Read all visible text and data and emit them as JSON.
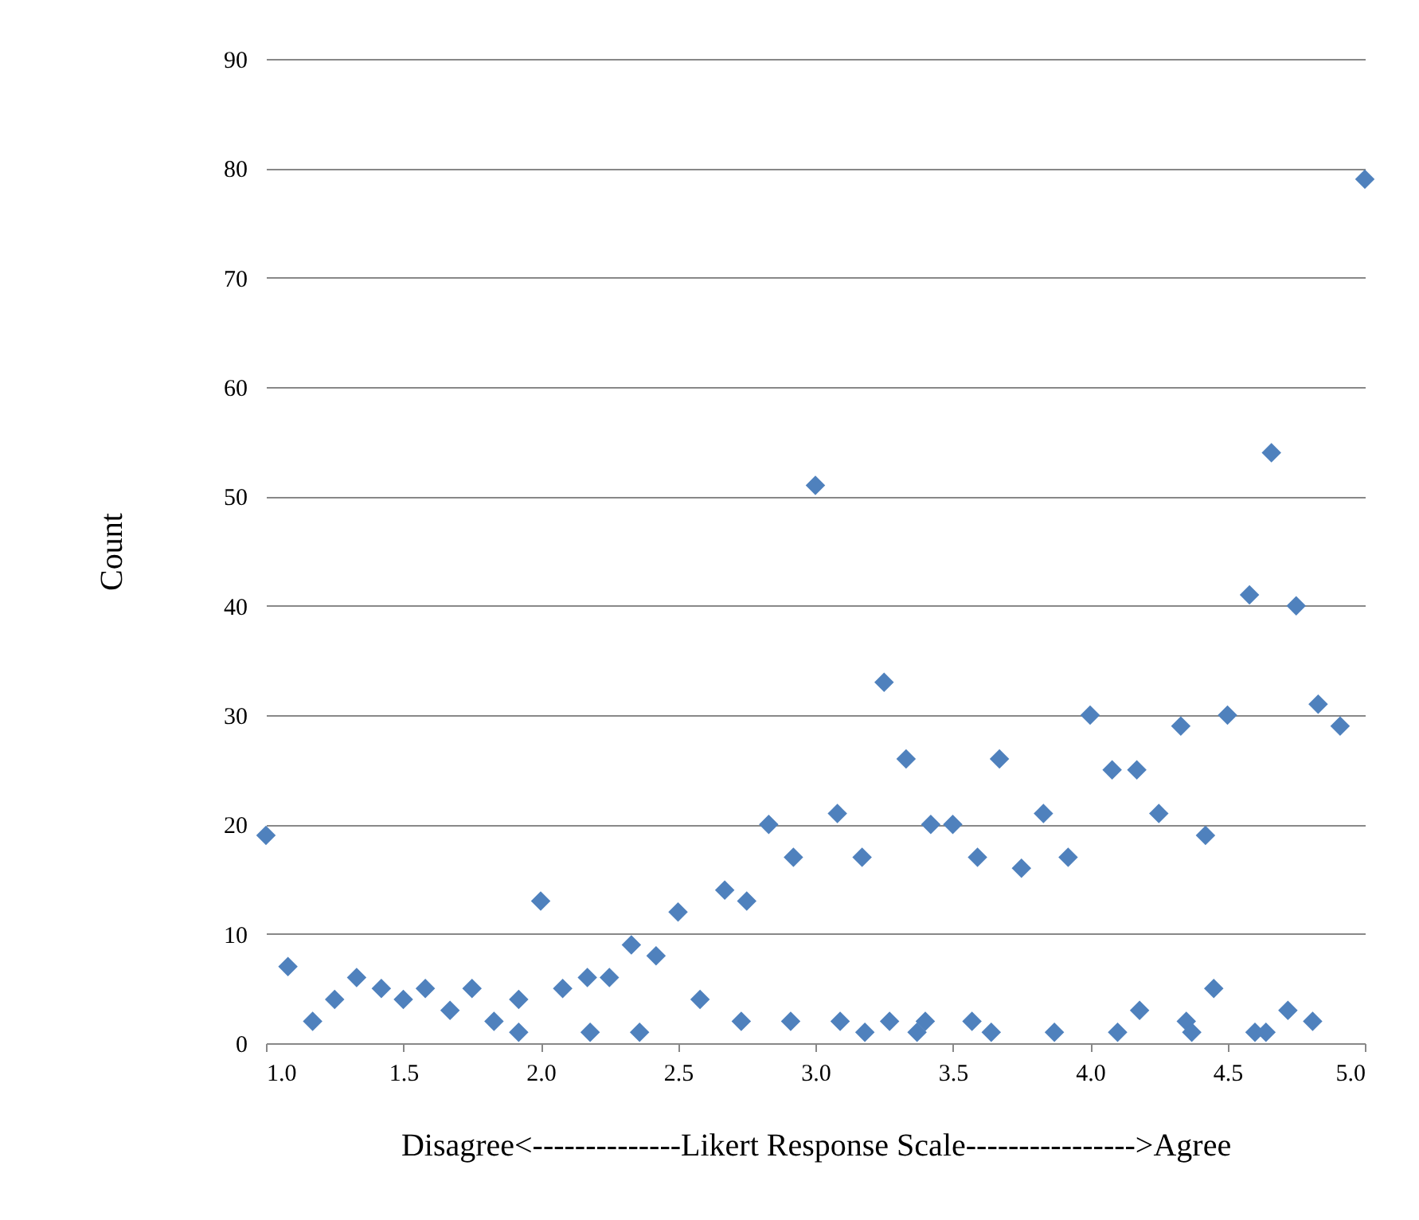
{
  "chart_data": {
    "type": "scatter",
    "xlabel": "Disagree<--------------Likert Response Scale---------------->Agree",
    "ylabel": "Count",
    "xlim": [
      1,
      5
    ],
    "xticks": [
      {
        "value": 1,
        "label": "1.0"
      },
      {
        "value": 1.5,
        "label": "1.5"
      },
      {
        "value": 2,
        "label": "2.0"
      },
      {
        "value": 2.5,
        "label": "2.5"
      },
      {
        "value": 3,
        "label": "3.0"
      },
      {
        "value": 3.5,
        "label": "3.5"
      },
      {
        "value": 4,
        "label": "4.0"
      },
      {
        "value": 4.5,
        "label": "4.5"
      },
      {
        "value": 5,
        "label": "5.0"
      }
    ],
    "ylim": [
      0,
      90
    ],
    "yticks": [
      0,
      10,
      20,
      30,
      40,
      50,
      60,
      70,
      80,
      90
    ],
    "grid": "y",
    "marker": "diamond",
    "series": [
      {
        "color": "#4f81bd",
        "x": [
          1.0,
          1.08,
          1.17,
          1.25,
          1.33,
          1.42,
          1.5,
          1.58,
          1.67,
          1.75,
          1.83,
          1.92,
          1.92,
          2.0,
          2.08,
          2.17,
          2.18,
          2.25,
          2.33,
          2.36,
          2.42,
          2.5,
          2.58,
          2.67,
          2.73,
          2.75,
          2.83,
          2.91,
          2.92,
          3.0,
          3.08,
          3.09,
          3.17,
          3.18,
          3.25,
          3.27,
          3.33,
          3.37,
          3.4,
          3.42,
          3.5,
          3.57,
          3.59,
          3.64,
          3.67,
          3.75,
          3.83,
          3.87,
          3.92,
          4.0,
          4.08,
          4.1,
          4.17,
          4.18,
          4.25,
          4.33,
          4.35,
          4.37,
          4.42,
          4.45,
          4.5,
          4.58,
          4.6,
          4.64,
          4.66,
          4.72,
          4.75,
          4.81,
          4.83,
          4.91,
          5.0
        ],
        "values": [
          19,
          7,
          2,
          4,
          6,
          5,
          4,
          5,
          3,
          5,
          2,
          1,
          4,
          13,
          5,
          6,
          1,
          6,
          9,
          1,
          8,
          12,
          4,
          14,
          2,
          13,
          20,
          2,
          17,
          51,
          21,
          2,
          17,
          1,
          33,
          2,
          26,
          1,
          2,
          20,
          20,
          2,
          17,
          1,
          26,
          16,
          21,
          1,
          17,
          30,
          25,
          1,
          25,
          3,
          21,
          29,
          2,
          1,
          19,
          5,
          30,
          41,
          1,
          1,
          54,
          3,
          40,
          2,
          31,
          29,
          79
        ]
      }
    ]
  }
}
